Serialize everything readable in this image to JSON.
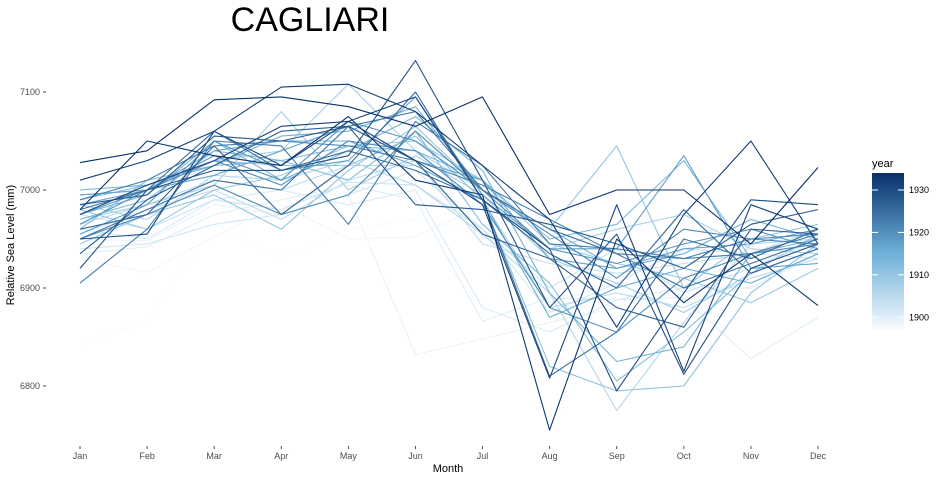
{
  "chart_data": {
    "type": "line",
    "title": "CAGLIARI",
    "xlabel": "Month",
    "ylabel": "Relative Sea Level (mm)",
    "categories": [
      "Jan",
      "Feb",
      "Mar",
      "Apr",
      "May",
      "Jun",
      "Jul",
      "Aug",
      "Sep",
      "Oct",
      "Nov",
      "Dec"
    ],
    "ylim": [
      6745,
      7135
    ],
    "yticks": [
      6800,
      6900,
      7000,
      7100
    ],
    "ytick_labels": [
      "6800",
      "6900",
      "7000",
      "7100"
    ],
    "grid": false,
    "legend": {
      "title": "year",
      "placement": "right",
      "range": [
        1897,
        1934
      ],
      "ticks": [
        1900,
        1910,
        1920,
        1930
      ],
      "tick_labels": [
        "1900",
        "1910",
        "1920",
        "1930"
      ],
      "low_color": "#f7fbff",
      "high_color": "#08306b"
    },
    "series": [
      {
        "year": 1897,
        "values": [
          6843,
          6866,
          6965,
          6930,
          6960,
          6970,
          6955,
          6760,
          6870,
          6935,
          6950,
          6945
        ]
      },
      {
        "year": 1898,
        "values": [
          6930,
          6916,
          6952,
          6985,
          6950,
          6952,
          6985,
          6885,
          6905,
          6900,
          6935,
          6955
        ]
      },
      {
        "year": 1899,
        "values": [
          6950,
          6948,
          6985,
          6975,
          6995,
          6832,
          6848,
          6865,
          6880,
          6940,
          6925,
          6945
        ]
      },
      {
        "year": 1900,
        "values": [
          6935,
          6942,
          6975,
          6990,
          7005,
          6990,
          6866,
          6890,
          6888,
          6890,
          6828,
          6870
        ]
      },
      {
        "year": 1901,
        "values": [
          6960,
          6950,
          6990,
          7000,
          6985,
          7000,
          6880,
          6855,
          6888,
          6900,
          6900,
          6935
        ]
      },
      {
        "year": 1902,
        "values": [
          6940,
          6945,
          6965,
          6975,
          6995,
          7020,
          6960,
          6875,
          6905,
          6940,
          6935,
          6930
        ]
      },
      {
        "year": 1903,
        "values": [
          6975,
          6960,
          6990,
          6980,
          7008,
          7005,
          6960,
          6900,
          6940,
          6895,
          6920,
          6950
        ]
      },
      {
        "year": 1904,
        "values": [
          6955,
          6980,
          7000,
          6970,
          7010,
          7030,
          6945,
          6925,
          6915,
          6925,
          6935,
          6960
        ]
      },
      {
        "year": 1905,
        "values": [
          6965,
          6985,
          7010,
          7000,
          7025,
          7025,
          6990,
          6880,
          6895,
          6880,
          6910,
          6930
        ]
      },
      {
        "year": 1906,
        "values": [
          6985,
          6970,
          7015,
          7010,
          7030,
          7005,
          6955,
          6895,
          6775,
          6865,
          6945,
          6950
        ]
      },
      {
        "year": 1907,
        "values": [
          6995,
          7000,
          7030,
          7040,
          7108,
          7040,
          7000,
          6940,
          6960,
          6975,
          6940,
          6935
        ]
      },
      {
        "year": 1908,
        "values": [
          6970,
          6985,
          7005,
          7080,
          7000,
          7035,
          6995,
          6930,
          6905,
          6875,
          6915,
          6955
        ]
      },
      {
        "year": 1909,
        "values": [
          6980,
          6960,
          7000,
          7015,
          7045,
          7050,
          7010,
          6945,
          6925,
          6910,
          6885,
          6920
        ]
      },
      {
        "year": 1910,
        "values": [
          6945,
          6975,
          6995,
          6960,
          7020,
          7065,
          7000,
          6960,
          7045,
          6900,
          6950,
          6965
        ]
      },
      {
        "year": 1911,
        "values": [
          6990,
          7005,
          7030,
          7025,
          7025,
          7055,
          6990,
          6820,
          6795,
          6800,
          6895,
          6945
        ]
      },
      {
        "year": 1912,
        "values": [
          6970,
          6990,
          7040,
          7030,
          7010,
          7060,
          6965,
          6905,
          6805,
          6855,
          6915,
          6940
        ]
      },
      {
        "year": 1913,
        "values": [
          6960,
          7010,
          7025,
          7030,
          7045,
          7040,
          7010,
          6950,
          6965,
          7030,
          6930,
          6960
        ]
      },
      {
        "year": 1914,
        "values": [
          6975,
          6995,
          7050,
          7010,
          7040,
          7075,
          7020,
          6895,
          6825,
          6840,
          6935,
          6950
        ]
      },
      {
        "year": 1915,
        "values": [
          7000,
          7005,
          7025,
          7055,
          7060,
          7085,
          7000,
          6960,
          6920,
          6935,
          6970,
          6950
        ]
      },
      {
        "year": 1916,
        "values": [
          6985,
          7000,
          7040,
          7050,
          7050,
          7025,
          6990,
          6870,
          6900,
          6920,
          6905,
          6935
        ]
      },
      {
        "year": 1917,
        "values": [
          6995,
          7000,
          7015,
          7040,
          7065,
          7030,
          7010,
          6930,
          6920,
          6940,
          6945,
          6960
        ]
      },
      {
        "year": 1918,
        "values": [
          6955,
          6985,
          7050,
          7020,
          7030,
          7095,
          6995,
          6940,
          6940,
          7035,
          6920,
          6925
        ]
      },
      {
        "year": 1919,
        "values": [
          6975,
          7000,
          7035,
          7010,
          7070,
          7050,
          7000,
          6940,
          6925,
          6945,
          6960,
          6940
        ]
      },
      {
        "year": 1920,
        "values": [
          6965,
          7000,
          7030,
          7005,
          7050,
          7040,
          6985,
          6880,
          6855,
          6910,
          6935,
          6945
        ]
      },
      {
        "year": 1921,
        "values": [
          6950,
          6975,
          7005,
          6975,
          6995,
          7060,
          7000,
          6955,
          6910,
          6960,
          6950,
          6955
        ]
      },
      {
        "year": 1922,
        "values": [
          6990,
          7010,
          7045,
          7050,
          7045,
          7030,
          7005,
          6970,
          6935,
          6930,
          6950,
          6945
        ]
      },
      {
        "year": 1923,
        "values": [
          6905,
          6960,
          7050,
          7045,
          6965,
          7070,
          7025,
          6945,
          6940,
          6930,
          6935,
          6955
        ]
      },
      {
        "year": 1924,
        "values": [
          6950,
          6980,
          7010,
          7000,
          7065,
          7080,
          7000,
          6960,
          6935,
          6900,
          6925,
          6950
        ]
      },
      {
        "year": 1925,
        "values": [
          6980,
          7000,
          7060,
          7020,
          7040,
          7020,
          6990,
          6810,
          6855,
          6950,
          6930,
          6960
        ]
      },
      {
        "year": 1926,
        "values": [
          6960,
          6975,
          7045,
          6975,
          7025,
          7100,
          6990,
          6935,
          6900,
          6980,
          6915,
          6940
        ]
      },
      {
        "year": 1927,
        "values": [
          6935,
          6990,
          7025,
          7060,
          7065,
          7030,
          6955,
          6930,
          6880,
          6860,
          6960,
          6955
        ]
      },
      {
        "year": 1928,
        "values": [
          6985,
          6995,
          7055,
          7050,
          7065,
          6985,
          6980,
          6965,
          6945,
          6920,
          6965,
          6980
        ]
      },
      {
        "year": 1929,
        "values": [
          6920,
          7000,
          7020,
          7020,
          7035,
          7132,
          7010,
          6880,
          6955,
          6812,
          6920,
          6945
        ]
      },
      {
        "year": 1930,
        "values": [
          6950,
          6955,
          7060,
          7025,
          7070,
          7095,
          6990,
          6940,
          6795,
          6895,
          6990,
          6985
        ]
      },
      {
        "year": 1931,
        "values": [
          6975,
          7005,
          7030,
          7065,
          7070,
          7030,
          6985,
          6808,
          6985,
          6815,
          6985,
          6960
        ]
      },
      {
        "year": 1932,
        "values": [
          7010,
          7030,
          7060,
          7105,
          7108,
          7080,
          7025,
          6970,
          6860,
          6975,
          7050,
          6945
        ]
      },
      {
        "year": 1933,
        "values": [
          6980,
          7050,
          7035,
          7025,
          7075,
          7010,
          6995,
          6755,
          6950,
          6885,
          6935,
          6882
        ]
      },
      {
        "year": 1934,
        "values": [
          7028,
          7040,
          7092,
          7095,
          7085,
          7065,
          7095,
          6975,
          7000,
          7000,
          6945,
          7023
        ]
      }
    ]
  }
}
